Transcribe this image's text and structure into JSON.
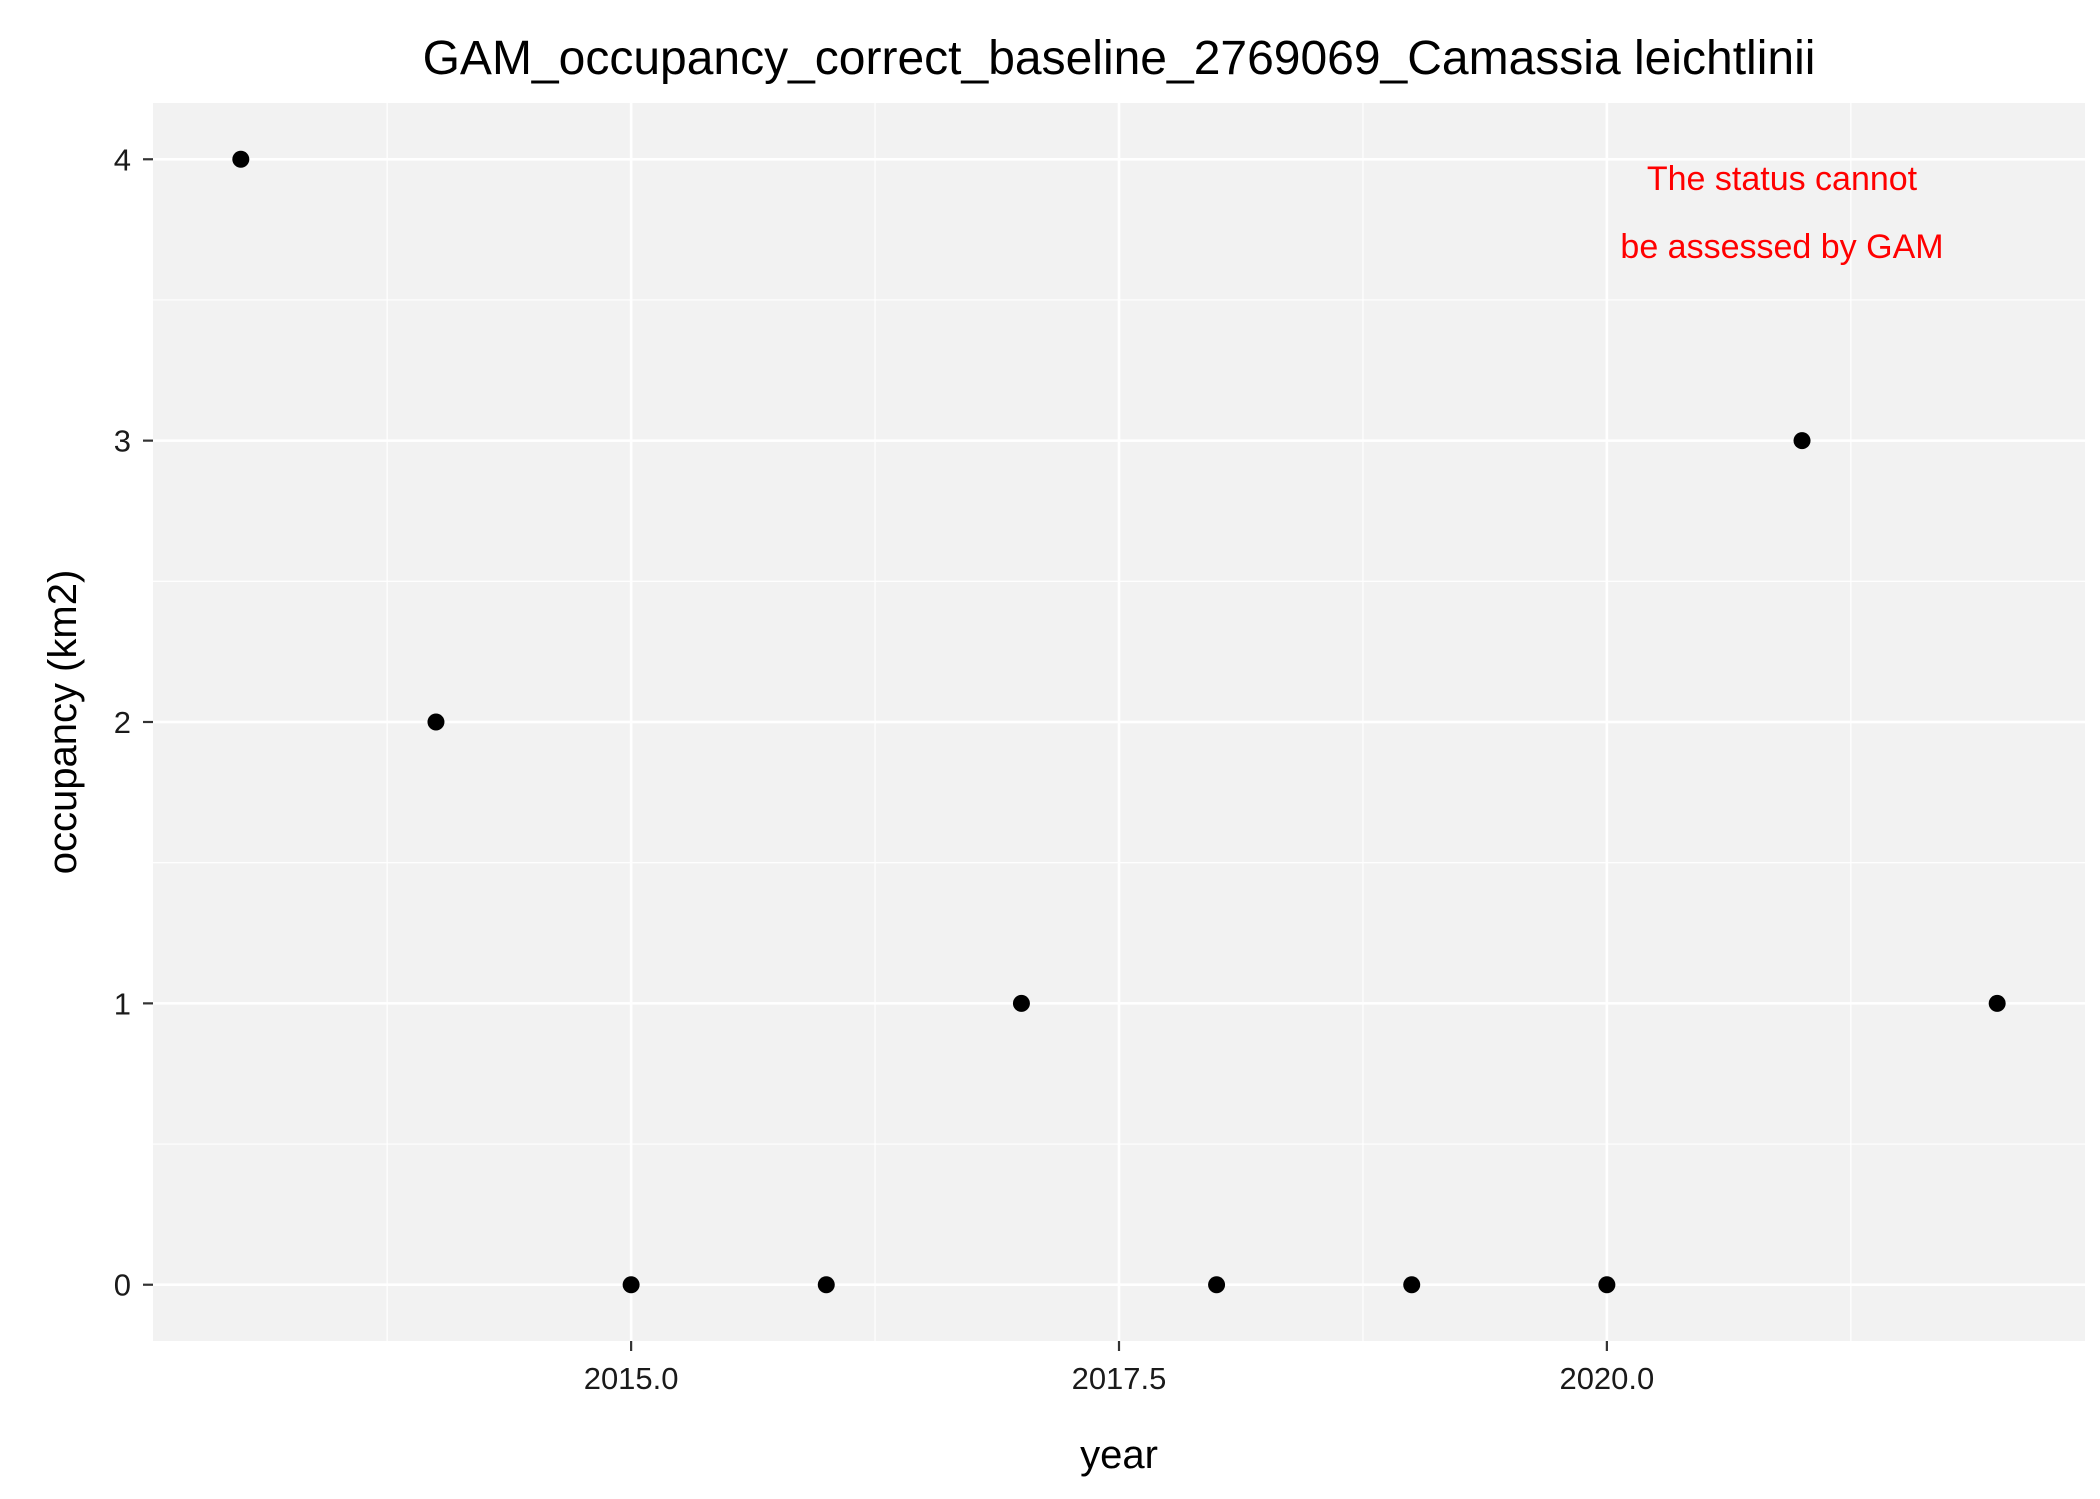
{
  "chart_data": {
    "type": "scatter",
    "title": "GAM_occupancy_correct_baseline_2769069_Camassia leichtlinii",
    "xlabel": "year",
    "ylabel": "occupancy (km2)",
    "x_ticks": [
      "2015.0",
      "2017.5",
      "2020.0"
    ],
    "x_tick_values": [
      2015,
      2017.5,
      2020
    ],
    "y_ticks": [
      "0",
      "1",
      "2",
      "3",
      "4"
    ],
    "y_tick_values": [
      0,
      1,
      2,
      3,
      4
    ],
    "xlim": [
      2012.55,
      2022.45
    ],
    "ylim": [
      -0.2,
      4.2
    ],
    "grid": true,
    "points": [
      {
        "x": 2013,
        "y": 4
      },
      {
        "x": 2014,
        "y": 2
      },
      {
        "x": 2015,
        "y": 0
      },
      {
        "x": 2016,
        "y": 0
      },
      {
        "x": 2017,
        "y": 1
      },
      {
        "x": 2018,
        "y": 0
      },
      {
        "x": 2019,
        "y": 0
      },
      {
        "x": 2020,
        "y": 0
      },
      {
        "x": 2021,
        "y": 3
      },
      {
        "x": 2022,
        "y": 1
      }
    ],
    "annotation": {
      "lines": [
        "The status cannot",
        "be assessed by GAM"
      ],
      "color": "#ff0000"
    },
    "panel_color": "#f2f2f2",
    "grid_color": "#ffffff",
    "point_color": "#000000"
  }
}
